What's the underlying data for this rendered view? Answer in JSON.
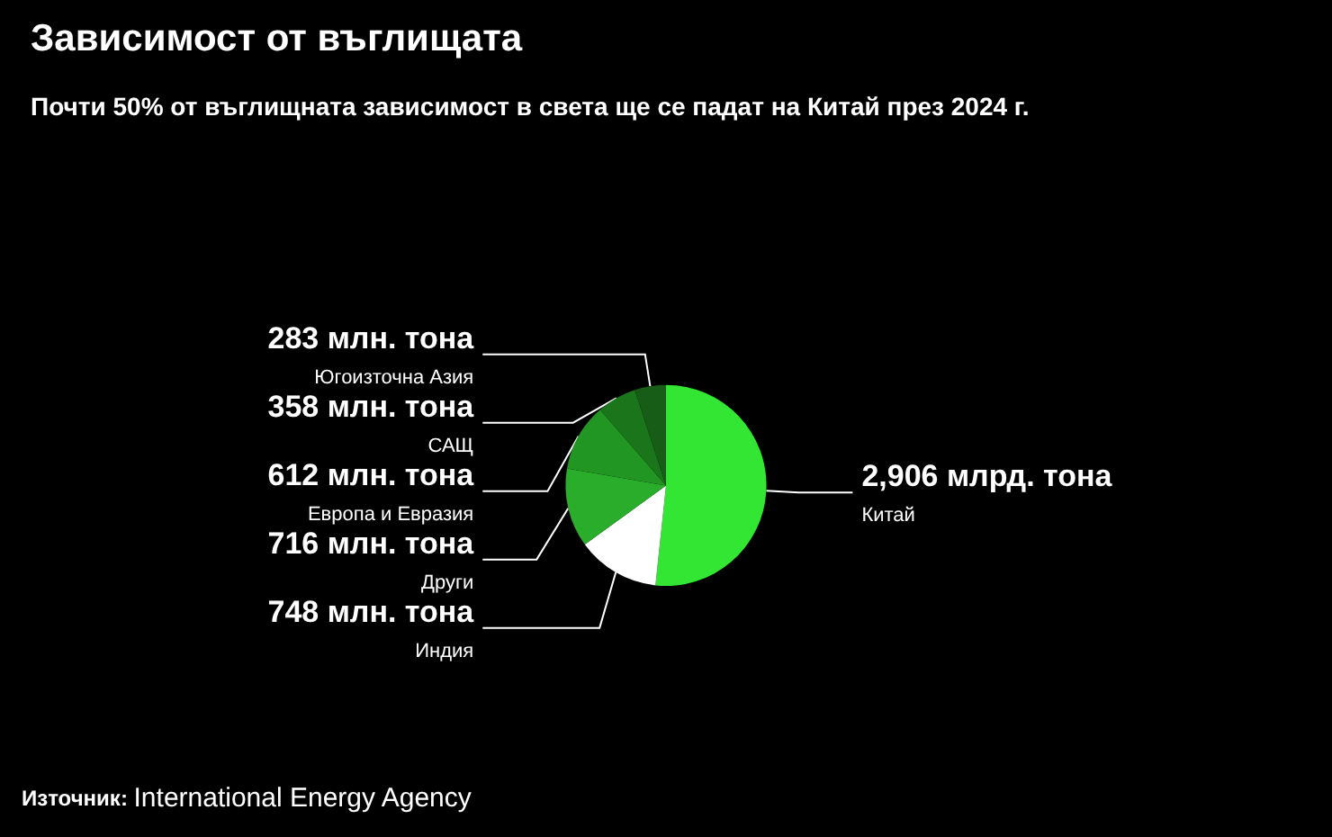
{
  "chart_data": {
    "type": "pie",
    "title": "Зависимост от въглищата",
    "subtitle": "Почти 50% от въглищната зависимост в света ще се падат на Китай през 2024 г.",
    "categories": [
      "Китай",
      "Индия",
      "Други",
      "Европа и Евразия",
      "САЩ",
      "Югоизточна Азия"
    ],
    "values": [
      2906,
      748,
      716,
      612,
      358,
      283
    ],
    "value_labels": [
      "2,906 млрд. тона",
      "748 млн. тона",
      "716 млн. тона",
      "612 млн. тона",
      "358 млн. тона",
      "283 млн. тона"
    ],
    "colors": [
      "#33e633",
      "#ffffff",
      "#2aad2a",
      "#229622",
      "#1b761b",
      "#175d17"
    ],
    "annotations": [
      "Източник: International Energy Agency"
    ],
    "legend": false
  }
}
